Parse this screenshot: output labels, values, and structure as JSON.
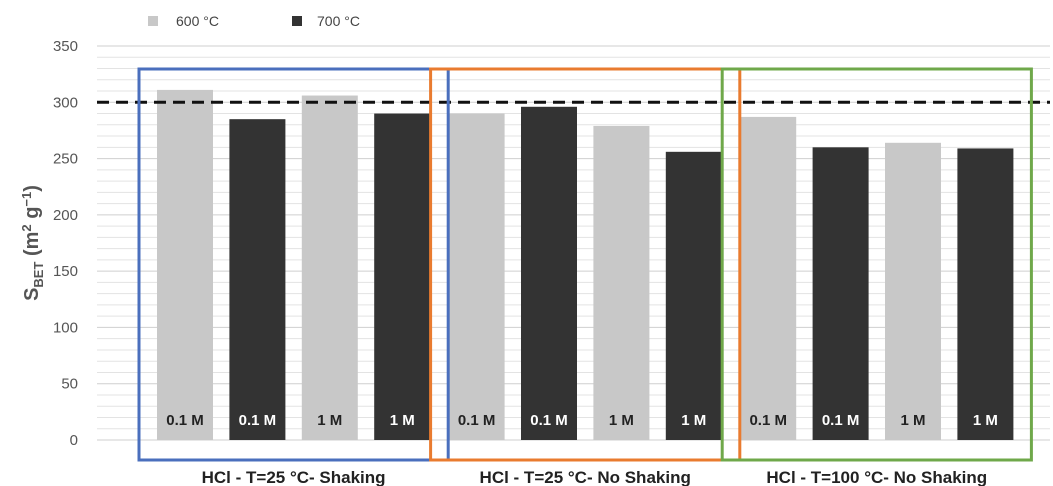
{
  "chart_data": {
    "type": "bar",
    "ylabel": {
      "main": "S",
      "sub": "BET",
      "unit_open": " (m",
      "unit_sup1": "2",
      "unit_mid": " g",
      "unit_sup2": "−1",
      "unit_close": ")"
    },
    "ylim": [
      0,
      350
    ],
    "yticks": [
      0,
      50,
      100,
      150,
      200,
      250,
      300,
      350
    ],
    "grid": true,
    "legend": {
      "position": "top-left",
      "entries": [
        {
          "name": "600 °C",
          "color": "#c8c8c8"
        },
        {
          "name": "700 °C",
          "color": "#333333"
        }
      ]
    },
    "reference_line": {
      "value": 300,
      "style": "dashed",
      "color": "#111111"
    },
    "groups": [
      {
        "label": "HCl - T=25 °C- Shaking",
        "frame_color": "#4a6fbd",
        "bars": [
          {
            "label": "0.1 M",
            "series": "600 °C",
            "value": 311
          },
          {
            "label": "0.1 M",
            "series": "700 °C",
            "value": 285
          },
          {
            "label": "1 M",
            "series": "600 °C",
            "value": 306
          },
          {
            "label": "1 M",
            "series": "700 °C",
            "value": 290
          }
        ]
      },
      {
        "label": "HCl - T=25 °C- No Shaking",
        "frame_color": "#e97b2f",
        "bars": [
          {
            "label": "0.1 M",
            "series": "600 °C",
            "value": 290
          },
          {
            "label": "0.1 M",
            "series": "700 °C",
            "value": 296
          },
          {
            "label": "1 M",
            "series": "600 °C",
            "value": 279
          },
          {
            "label": "1 M",
            "series": "700 °C",
            "value": 256
          }
        ]
      },
      {
        "label": "HCl - T=100 °C- No Shaking",
        "frame_color": "#6fa84a",
        "bars": [
          {
            "label": "0.1 M",
            "series": "600 °C",
            "value": 287
          },
          {
            "label": "0.1 M",
            "series": "700 °C",
            "value": 260
          },
          {
            "label": "1 M",
            "series": "600 °C",
            "value": 264
          },
          {
            "label": "1 M",
            "series": "700 °C",
            "value": 259
          }
        ]
      }
    ]
  }
}
